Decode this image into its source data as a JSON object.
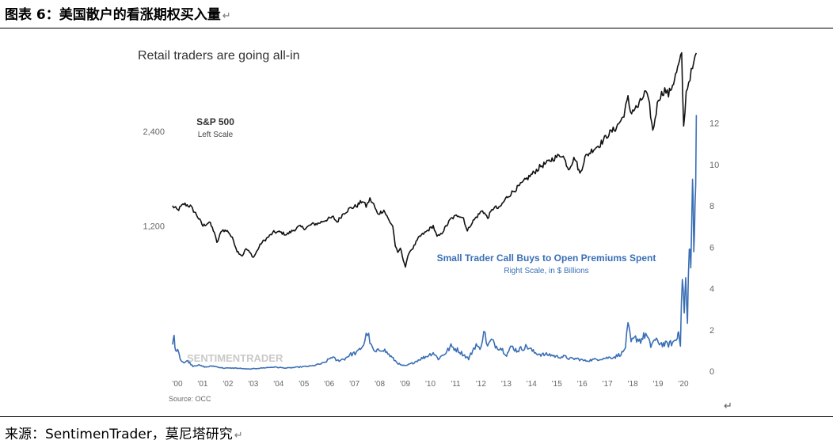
{
  "figure": {
    "title": "图表 6：美国散户的看涨期权买入量",
    "source": "来源：SentimenTrader，莫尼塔研究",
    "return_mark": "↵"
  },
  "chart_data": {
    "type": "line",
    "title": "Retail traders are going all-in",
    "source_note": "Source: OCC",
    "watermark": "SENTIMENTRADER",
    "x_tick_labels": [
      "'00",
      "'01",
      "'02",
      "'03",
      "'04",
      "'05",
      "'06",
      "'07",
      "'08",
      "'09",
      "'10",
      "'11",
      "'12",
      "'13",
      "'14",
      "'15",
      "'16",
      "'17",
      "'18",
      "'19",
      "'20"
    ],
    "x_range": [
      2000.0,
      2020.75
    ],
    "left_axis": {
      "ticks": [
        1200,
        2400
      ],
      "tick_labels": [
        "1,200",
        "2,400"
      ],
      "range": [
        500,
        3600
      ]
    },
    "right_axis": {
      "ticks": [
        0,
        2,
        4,
        6,
        8,
        10,
        12
      ],
      "tick_labels": [
        "0",
        "2",
        "4",
        "6",
        "8",
        "10",
        "12"
      ],
      "range": [
        0,
        12.6
      ]
    },
    "grid": false,
    "series": [
      {
        "name": "S&P 500",
        "subtitle": "Left Scale",
        "axis": "left",
        "color": "#111111",
        "points": [
          [
            2000.0,
            1450
          ],
          [
            2000.2,
            1400
          ],
          [
            2000.45,
            1480
          ],
          [
            2000.7,
            1450
          ],
          [
            2000.95,
            1340
          ],
          [
            2001.2,
            1200
          ],
          [
            2001.45,
            1250
          ],
          [
            2001.65,
            1120
          ],
          [
            2001.75,
            980
          ],
          [
            2001.95,
            1150
          ],
          [
            2002.2,
            1130
          ],
          [
            2002.4,
            1020
          ],
          [
            2002.55,
            880
          ],
          [
            2002.75,
            820
          ],
          [
            2002.9,
            910
          ],
          [
            2003.05,
            860
          ],
          [
            2003.2,
            800
          ],
          [
            2003.5,
            980
          ],
          [
            2003.75,
            1050
          ],
          [
            2004.0,
            1120
          ],
          [
            2004.25,
            1120
          ],
          [
            2004.5,
            1090
          ],
          [
            2004.75,
            1140
          ],
          [
            2005.0,
            1190
          ],
          [
            2005.25,
            1170
          ],
          [
            2005.5,
            1220
          ],
          [
            2005.75,
            1230
          ],
          [
            2006.0,
            1270
          ],
          [
            2006.35,
            1310
          ],
          [
            2006.5,
            1250
          ],
          [
            2006.75,
            1360
          ],
          [
            2007.0,
            1420
          ],
          [
            2007.3,
            1460
          ],
          [
            2007.5,
            1520
          ],
          [
            2007.65,
            1450
          ],
          [
            2007.8,
            1540
          ],
          [
            2007.95,
            1470
          ],
          [
            2008.1,
            1350
          ],
          [
            2008.35,
            1400
          ],
          [
            2008.55,
            1270
          ],
          [
            2008.7,
            1200
          ],
          [
            2008.8,
            950
          ],
          [
            2008.9,
            850
          ],
          [
            2009.0,
            920
          ],
          [
            2009.12,
            770
          ],
          [
            2009.2,
            680
          ],
          [
            2009.35,
            870
          ],
          [
            2009.5,
            920
          ],
          [
            2009.75,
            1060
          ],
          [
            2010.0,
            1120
          ],
          [
            2010.3,
            1200
          ],
          [
            2010.45,
            1060
          ],
          [
            2010.6,
            1090
          ],
          [
            2010.8,
            1190
          ],
          [
            2011.0,
            1290
          ],
          [
            2011.3,
            1340
          ],
          [
            2011.5,
            1300
          ],
          [
            2011.65,
            1130
          ],
          [
            2011.8,
            1230
          ],
          [
            2012.0,
            1310
          ],
          [
            2012.25,
            1400
          ],
          [
            2012.45,
            1300
          ],
          [
            2012.7,
            1440
          ],
          [
            2012.9,
            1420
          ],
          [
            2013.2,
            1560
          ],
          [
            2013.5,
            1650
          ],
          [
            2013.75,
            1720
          ],
          [
            2014.0,
            1800
          ],
          [
            2014.25,
            1870
          ],
          [
            2014.55,
            1960
          ],
          [
            2014.8,
            2000
          ],
          [
            2015.0,
            2050
          ],
          [
            2015.4,
            2110
          ],
          [
            2015.65,
            1930
          ],
          [
            2015.9,
            2070
          ],
          [
            2016.1,
            1860
          ],
          [
            2016.3,
            2070
          ],
          [
            2016.6,
            2170
          ],
          [
            2016.9,
            2240
          ],
          [
            2017.2,
            2360
          ],
          [
            2017.5,
            2440
          ],
          [
            2017.8,
            2580
          ],
          [
            2018.0,
            2820
          ],
          [
            2018.1,
            2650
          ],
          [
            2018.4,
            2720
          ],
          [
            2018.7,
            2910
          ],
          [
            2018.85,
            2720
          ],
          [
            2018.98,
            2400
          ],
          [
            2019.2,
            2820
          ],
          [
            2019.45,
            2930
          ],
          [
            2019.6,
            2870
          ],
          [
            2019.8,
            3030
          ],
          [
            2020.0,
            3240
          ],
          [
            2020.12,
            3370
          ],
          [
            2020.2,
            2450
          ],
          [
            2020.3,
            2900
          ],
          [
            2020.45,
            3100
          ],
          [
            2020.6,
            3250
          ],
          [
            2020.7,
            3400
          ]
        ]
      },
      {
        "name": "Small Trader Call Buys to Open Premiums Spent",
        "subtitle": "Right Scale, in $ Billions",
        "axis": "right",
        "color": "#3a6fb5",
        "points": [
          [
            2000.0,
            1.3
          ],
          [
            2000.06,
            1.7
          ],
          [
            2000.12,
            0.9
          ],
          [
            2000.2,
            1.2
          ],
          [
            2000.3,
            0.6
          ],
          [
            2000.45,
            0.4
          ],
          [
            2000.6,
            0.5
          ],
          [
            2000.8,
            0.25
          ],
          [
            2001.0,
            0.3
          ],
          [
            2001.3,
            0.2
          ],
          [
            2001.6,
            0.25
          ],
          [
            2002.0,
            0.15
          ],
          [
            2002.5,
            0.15
          ],
          [
            2003.0,
            0.1
          ],
          [
            2003.5,
            0.15
          ],
          [
            2004.0,
            0.2
          ],
          [
            2004.5,
            0.15
          ],
          [
            2005.0,
            0.2
          ],
          [
            2005.5,
            0.25
          ],
          [
            2006.0,
            0.4
          ],
          [
            2006.3,
            0.7
          ],
          [
            2006.5,
            0.5
          ],
          [
            2006.8,
            0.6
          ],
          [
            2007.0,
            0.8
          ],
          [
            2007.3,
            0.9
          ],
          [
            2007.55,
            1.3
          ],
          [
            2007.7,
            1.9
          ],
          [
            2007.85,
            1.2
          ],
          [
            2008.0,
            0.9
          ],
          [
            2008.3,
            1.1
          ],
          [
            2008.55,
            0.8
          ],
          [
            2008.8,
            0.5
          ],
          [
            2009.0,
            0.3
          ],
          [
            2009.2,
            0.25
          ],
          [
            2009.5,
            0.4
          ],
          [
            2009.8,
            0.6
          ],
          [
            2010.0,
            0.7
          ],
          [
            2010.3,
            0.9
          ],
          [
            2010.5,
            0.6
          ],
          [
            2010.8,
            0.9
          ],
          [
            2011.0,
            1.2
          ],
          [
            2011.3,
            1.0
          ],
          [
            2011.5,
            0.8
          ],
          [
            2011.7,
            0.6
          ],
          [
            2011.9,
            1.1
          ],
          [
            2012.0,
            1.3
          ],
          [
            2012.15,
            1.0
          ],
          [
            2012.3,
            2.0
          ],
          [
            2012.45,
            1.2
          ],
          [
            2012.6,
            1.5
          ],
          [
            2012.8,
            1.2
          ],
          [
            2013.0,
            1.1
          ],
          [
            2013.2,
            0.8
          ],
          [
            2013.4,
            1.2
          ],
          [
            2013.6,
            1.0
          ],
          [
            2013.8,
            1.1
          ],
          [
            2014.0,
            1.2
          ],
          [
            2014.3,
            0.9
          ],
          [
            2014.6,
            0.8
          ],
          [
            2014.9,
            0.8
          ],
          [
            2015.2,
            0.7
          ],
          [
            2015.5,
            0.7
          ],
          [
            2015.7,
            0.6
          ],
          [
            2016.0,
            0.6
          ],
          [
            2016.3,
            0.5
          ],
          [
            2016.6,
            0.55
          ],
          [
            2016.9,
            0.6
          ],
          [
            2017.2,
            0.65
          ],
          [
            2017.5,
            0.7
          ],
          [
            2017.8,
            0.9
          ],
          [
            2017.9,
            1.2
          ],
          [
            2018.0,
            2.2
          ],
          [
            2018.12,
            1.4
          ],
          [
            2018.3,
            1.6
          ],
          [
            2018.5,
            1.5
          ],
          [
            2018.7,
            1.8
          ],
          [
            2018.9,
            1.2
          ],
          [
            2019.0,
            1.5
          ],
          [
            2019.2,
            1.4
          ],
          [
            2019.4,
            1.3
          ],
          [
            2019.6,
            1.3
          ],
          [
            2019.8,
            1.4
          ],
          [
            2019.95,
            1.6
          ],
          [
            2020.0,
            2.1
          ],
          [
            2020.07,
            1.3
          ],
          [
            2020.15,
            4.8
          ],
          [
            2020.22,
            2.8
          ],
          [
            2020.28,
            4.4
          ],
          [
            2020.35,
            2.2
          ],
          [
            2020.42,
            6.6
          ],
          [
            2020.48,
            4.8
          ],
          [
            2020.55,
            9.5
          ],
          [
            2020.6,
            5.6
          ],
          [
            2020.65,
            7.8
          ],
          [
            2020.7,
            12.4
          ]
        ]
      }
    ]
  }
}
